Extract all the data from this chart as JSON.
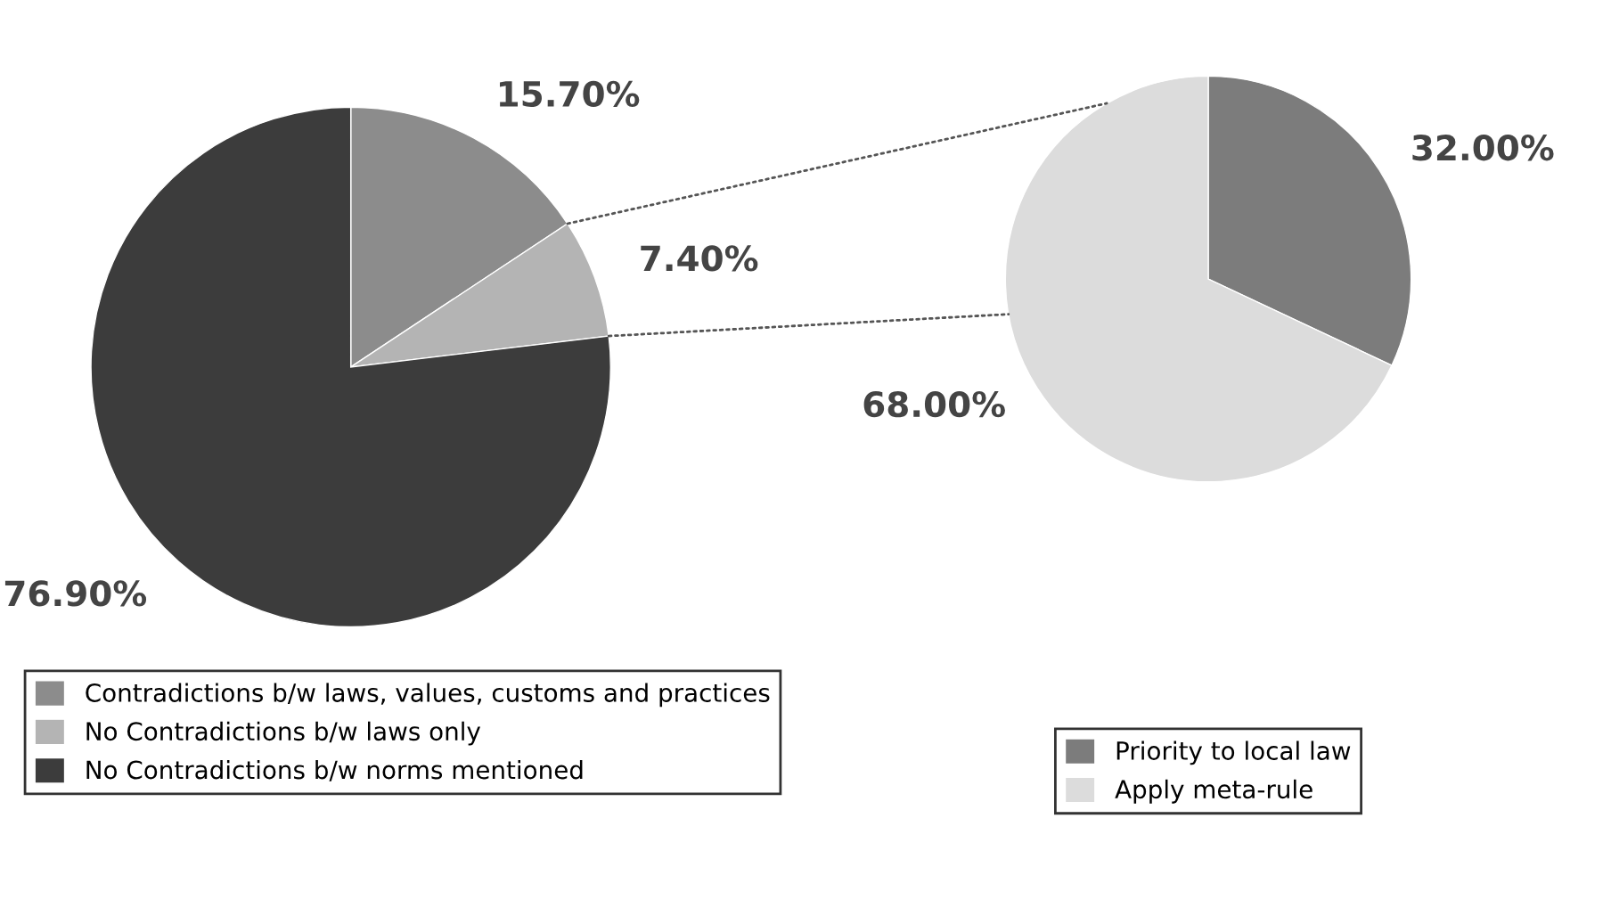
{
  "chart_data": [
    {
      "type": "pie",
      "categories": [
        "Contradictions b/w laws, values, customs and practices",
        "No Contradictions b/w laws only",
        "No Contradictions b/w norms mentioned"
      ],
      "values": [
        15.7,
        7.4,
        76.9
      ],
      "colors": [
        "#8c8c8c",
        "#b4b4b4",
        "#3c3c3c"
      ],
      "value_labels": [
        "15.70%",
        "7.40%",
        "76.90%"
      ],
      "legend": "bottom"
    },
    {
      "type": "pie",
      "categories": [
        "Priority to local law",
        "Apply meta-rule"
      ],
      "values": [
        32.0,
        68.0
      ],
      "colors": [
        "#7c7c7c",
        "#dcdcdc"
      ],
      "value_labels": [
        "32.00%",
        "68.00%"
      ],
      "legend": "bottom"
    }
  ]
}
